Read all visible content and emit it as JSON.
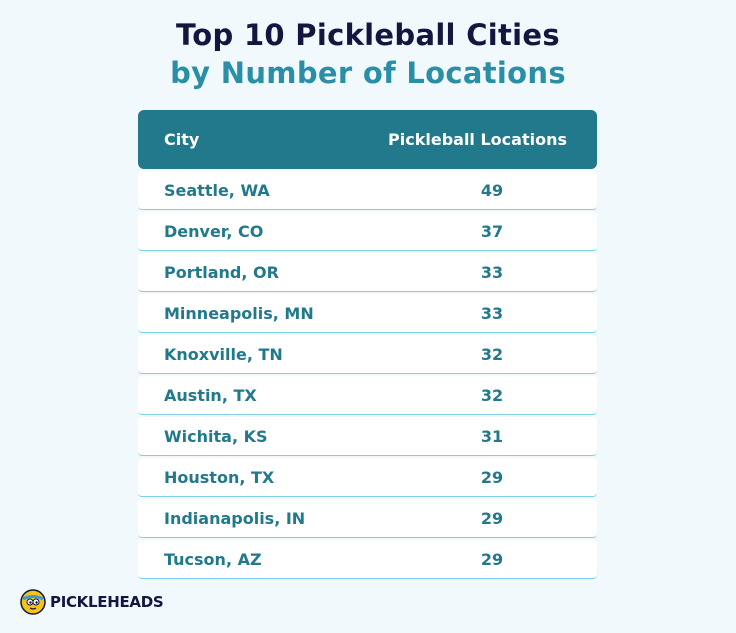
{
  "title": {
    "line1": "Top 10 Pickleball Cities",
    "line2": "by Number of Locations"
  },
  "table": {
    "headers": [
      "City",
      "Pickleball Locations"
    ],
    "rows": [
      {
        "city": "Seattle, WA",
        "count": "49"
      },
      {
        "city": "Denver, CO",
        "count": "37"
      },
      {
        "city": "Portland, OR",
        "count": "33"
      },
      {
        "city": "Minneapolis, MN",
        "count": "33"
      },
      {
        "city": "Knoxville, TN",
        "count": "32"
      },
      {
        "city": "Austin, TX",
        "count": "32"
      },
      {
        "city": "Wichita, KS",
        "count": "31"
      },
      {
        "city": "Houston, TX",
        "count": "29"
      },
      {
        "city": "Indianapolis, IN",
        "count": "29"
      },
      {
        "city": "Tucson, AZ",
        "count": "29"
      }
    ]
  },
  "logo": {
    "text": "PICKLEHEADS"
  },
  "colors": {
    "header": "#23798c",
    "title_dark": "#14163f",
    "title_accent": "#2a8ea6"
  }
}
